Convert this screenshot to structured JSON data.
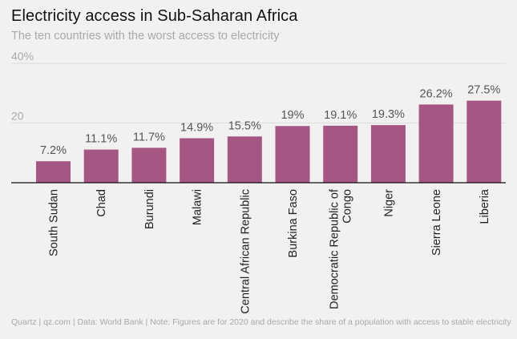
{
  "title": "Electricity access in Sub-Saharan Africa",
  "subtitle": "The ten countries with the worst access to electricity",
  "footer": "Quartz | qz.com | Data: World Bank | Note: Figures are for 2020 and describe the share of a population with access to stable electricity",
  "colors": {
    "bar": "#a65683",
    "gridline": "#dcdcdc",
    "axis": "#111111",
    "label": "#555555",
    "tick": "#a9a9a9",
    "background": "#f1f1f1"
  },
  "chart_data": {
    "type": "bar",
    "title": "Electricity access in Sub-Saharan Africa",
    "ylim": [
      0,
      40
    ],
    "yticks": [
      {
        "value": 40,
        "label": "40%"
      },
      {
        "value": 20,
        "label": "20"
      }
    ],
    "grid": true,
    "categories": [
      [
        "South Sudan"
      ],
      [
        "Chad"
      ],
      [
        "Burundi"
      ],
      [
        "Malawi"
      ],
      [
        "Central African Republic"
      ],
      [
        "Burkina Faso"
      ],
      [
        "Democratic Republic of",
        "Congo"
      ],
      [
        "Niger"
      ],
      [
        "Sierra Leone"
      ],
      [
        "Liberia"
      ]
    ],
    "values": [
      7.2,
      11.1,
      11.7,
      14.9,
      15.5,
      19,
      19.1,
      19.3,
      26.2,
      27.5
    ],
    "data_labels": [
      "7.2%",
      "11.1%",
      "11.7%",
      "14.9%",
      "15.5%",
      "19%",
      "19.1%",
      "19.3%",
      "26.2%",
      "27.5%"
    ]
  }
}
